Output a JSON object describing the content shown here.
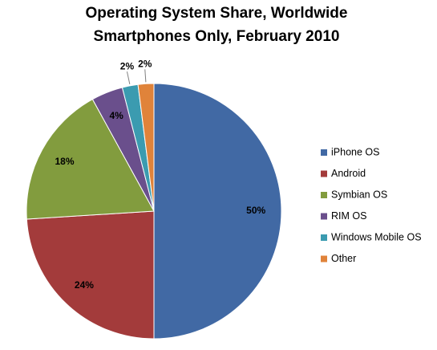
{
  "chart_data": {
    "type": "pie",
    "title": "Operating System Share, Worldwide",
    "subtitle": "Smartphones Only, February 2010",
    "categories": [
      "iPhone OS",
      "Android",
      "Symbian OS",
      "RIM OS",
      "Windows Mobile OS",
      "Other"
    ],
    "values": [
      50,
      24,
      18,
      4,
      2,
      2
    ],
    "data_labels": [
      "50%",
      "24%",
      "18%",
      "4%",
      "2%",
      "2%"
    ],
    "colors": [
      "#4169a4",
      "#a33b3b",
      "#829c3e",
      "#6a4f8c",
      "#3b9bb0",
      "#e0833a"
    ],
    "legend_position": "right",
    "start_angle": "12 o'clock",
    "direction": "clockwise"
  }
}
